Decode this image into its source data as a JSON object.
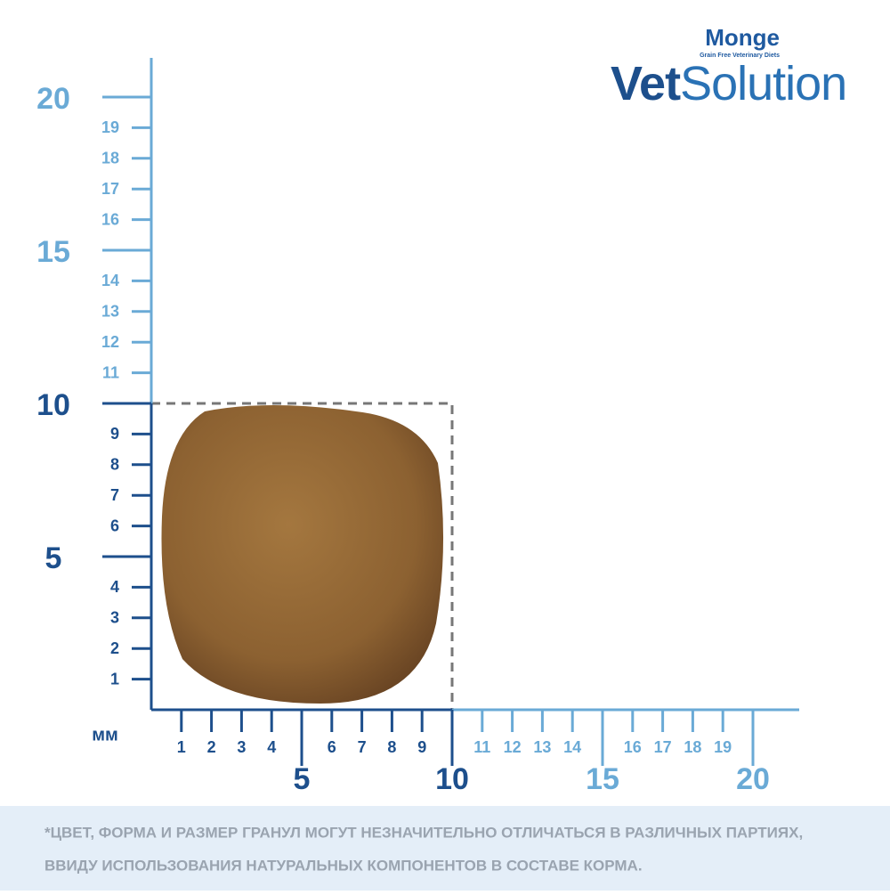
{
  "logo": {
    "brand": "Monge",
    "tagline": "Grain Free Veterinary Diets",
    "product_bold": "Vet",
    "product_light": "Solution"
  },
  "ruler": {
    "unit": "мм",
    "y_labels": [
      1,
      2,
      3,
      4,
      5,
      6,
      7,
      8,
      9,
      10,
      11,
      12,
      13,
      14,
      15,
      16,
      17,
      18,
      19,
      20
    ],
    "x_labels": [
      1,
      2,
      3,
      4,
      5,
      6,
      7,
      8,
      9,
      10,
      11,
      12,
      13,
      14,
      15,
      16,
      17,
      18,
      19,
      20
    ]
  },
  "footnote": {
    "lines": [
      "*ЦВЕТ, ФОРМА И РАЗМЕР ГРАНУЛ МОГУТ НЕЗНАЧИТЕЛЬНО ОТЛИЧАТЬСЯ В РАЗЛИЧНЫХ ПАРТИЯХ,",
      "ВВИДУ ИСПОЛЬЗОВАНИЯ НАТУРАЛЬНЫХ КОМПОНЕНТОВ В СОСТАВЕ КОРМА."
    ]
  }
}
